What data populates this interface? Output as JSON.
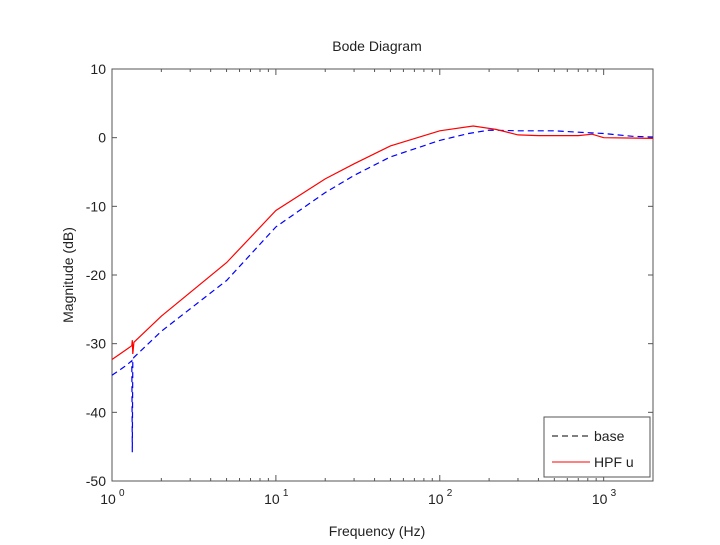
{
  "chart_data": {
    "type": "line",
    "title": "Bode Diagram",
    "xlabel": "Frequency  (Hz)",
    "ylabel": "Magnitude (dB)",
    "xscale": "log",
    "xlim": [
      1,
      2000
    ],
    "ylim": [
      -50,
      10
    ],
    "yticks": [
      10,
      0,
      -10,
      -20,
      -30,
      -40,
      -50
    ],
    "yticklabels": [
      "10",
      "0",
      "-10",
      "-20",
      "-30",
      "-40",
      "-50"
    ],
    "xticks": [
      1,
      10,
      100,
      1000
    ],
    "xtick_base": "10",
    "xtick_exp": [
      "0",
      "1",
      "2",
      "3"
    ],
    "grid": false,
    "legend_position": "bottom-right",
    "series": [
      {
        "name": "base",
        "color": "#0000ff",
        "legend_color": "#000000",
        "dash": "dashed",
        "x": [
          1,
          1.2,
          1.32,
          1.33,
          1.34,
          1.36,
          2,
          5,
          10,
          20,
          30,
          50,
          100,
          150,
          200,
          300,
          500,
          700,
          1000,
          1500,
          2000
        ],
        "y": [
          -34.6,
          -33.3,
          -32.5,
          -45.8,
          -32.3,
          -32.0,
          -28.2,
          -20.8,
          -13.0,
          -8.0,
          -5.5,
          -2.8,
          -0.4,
          0.6,
          1.1,
          1.0,
          1.0,
          0.8,
          0.6,
          0.2,
          0.1
        ]
      },
      {
        "name": "HPF u",
        "color": "#ff0000",
        "legend_color": "#ff0000",
        "dash": "solid",
        "x": [
          1,
          1.2,
          1.32,
          1.33,
          1.34,
          1.36,
          2,
          5,
          10,
          20,
          30,
          50,
          100,
          160,
          220,
          300,
          400,
          700,
          850,
          1000,
          2000
        ],
        "y": [
          -32.3,
          -31.0,
          -30.3,
          -29.5,
          -31.5,
          -29.8,
          -26.0,
          -18.2,
          -10.6,
          -6.0,
          -3.8,
          -1.2,
          1.0,
          1.7,
          1.2,
          0.4,
          0.3,
          0.3,
          0.5,
          0.0,
          -0.1
        ]
      }
    ]
  }
}
